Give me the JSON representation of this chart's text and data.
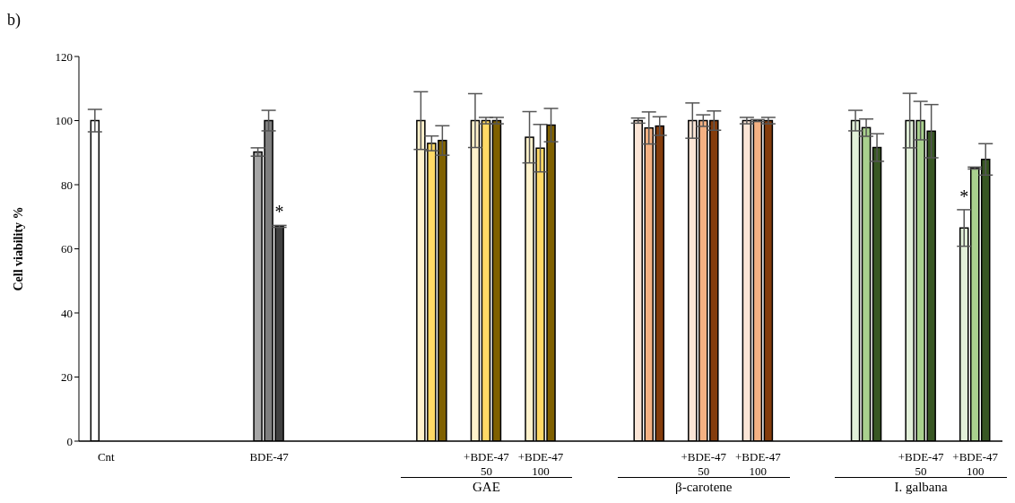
{
  "chart_data": {
    "type": "bar",
    "title": "b)",
    "ylabel": "Cell viability %",
    "categories": [
      "Cnt",
      null,
      null,
      "BDE-47",
      null,
      null,
      null,
      "+BDE-47\n50",
      "+BDE-47\n100",
      null,
      null,
      "+BDE-47\n50",
      "+BDE-47\n100",
      null,
      null,
      "+BDE-47\n50",
      "+BDE-47\n100"
    ],
    "series": [
      {
        "colors": [
          "#ffffff",
          null,
          null,
          "#a6a6a6",
          null,
          null,
          "#fff2cc",
          "#fff2cc",
          "#fff2cc",
          null,
          "#fbe5d6",
          "#fbe5d6",
          "#fbe5d6",
          null,
          "#e2f0d9",
          "#e2f0d9",
          "#e2f0d9"
        ],
        "values": [
          100,
          null,
          null,
          90.2,
          null,
          null,
          100,
          100,
          94.8,
          null,
          100,
          100,
          100,
          null,
          100,
          100,
          66.5
        ],
        "errors": [
          3.5,
          null,
          null,
          1.3,
          null,
          null,
          9,
          8.4,
          8,
          null,
          0.8,
          5.5,
          1,
          null,
          3.2,
          8.5,
          5.7
        ],
        "value_labels": [
          null,
          null,
          null,
          null,
          null,
          null,
          null,
          null,
          null,
          null,
          null,
          null,
          null,
          null,
          null,
          null,
          "*"
        ]
      },
      {
        "colors": [
          null,
          null,
          null,
          "#7f7f7f",
          null,
          null,
          "#ffd966",
          "#ffd966",
          "#ffd966",
          null,
          "#f4b183",
          "#f4b183",
          "#f4b183",
          null,
          "#a9d18e",
          "#a9d18e",
          "#a9d18e"
        ],
        "values": [
          null,
          null,
          null,
          100,
          null,
          null,
          92.9,
          100,
          91.4,
          null,
          97.7,
          100,
          100,
          null,
          97.8,
          100,
          85.2
        ],
        "errors": [
          null,
          null,
          null,
          3.2,
          null,
          null,
          2.3,
          1,
          7.4,
          null,
          5,
          1.8,
          0.3,
          null,
          2.7,
          6,
          0.3
        ]
      },
      {
        "colors": [
          null,
          null,
          null,
          "#404040",
          null,
          null,
          "#7f6000",
          "#7f6000",
          "#7f6000",
          null,
          "#843c0c",
          "#843c0c",
          "#843c0c",
          null,
          "#385723",
          "#385723",
          "#385723"
        ],
        "values": [
          null,
          null,
          null,
          67,
          null,
          null,
          93.8,
          100,
          98.6,
          null,
          98.3,
          100,
          100,
          null,
          91.6,
          96.7,
          87.9
        ],
        "errors": [
          null,
          null,
          null,
          0.3,
          null,
          null,
          4.6,
          1,
          5.2,
          null,
          2.9,
          3,
          1,
          null,
          4.3,
          8.3,
          4.9
        ],
        "value_labels": [
          null,
          null,
          null,
          "*",
          null,
          null,
          null,
          null,
          null,
          null,
          null,
          null,
          null,
          null,
          null,
          null,
          null
        ]
      }
    ],
    "ylim": [
      0,
      120
    ],
    "yticks": [
      0,
      20,
      40,
      60,
      80,
      100,
      120
    ],
    "grid": false,
    "legend": false,
    "annotations": [
      "GAE",
      "β-carotene",
      "I. galbana"
    ]
  }
}
